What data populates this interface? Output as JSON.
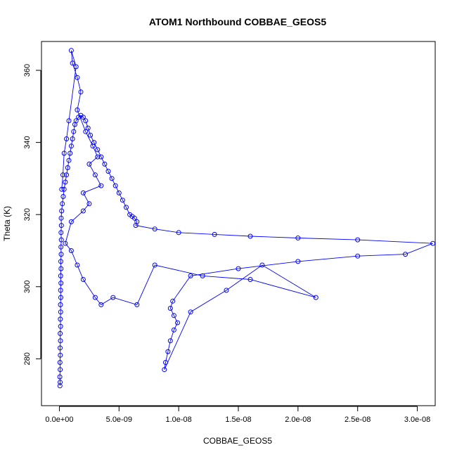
{
  "chart_data": {
    "type": "line",
    "title": "ATOM1 Northbound COBBAE_GEOS5",
    "xlabel": "COBBAE_GEOS5",
    "ylabel": "Theta (K)",
    "xlim": [
      -1.5e-09,
      3.15e-08
    ],
    "ylim": [
      267,
      368
    ],
    "xticks": [
      0,
      5e-09,
      1e-08,
      1.5e-08,
      2e-08,
      2.5e-08,
      3e-08
    ],
    "xtick_labels": [
      "0.0e+00",
      "5.0e-09",
      "1.0e-08",
      "1.5e-08",
      "2.0e-08",
      "2.5e-08",
      "3.0e-08"
    ],
    "yticks": [
      280,
      300,
      320,
      340,
      360
    ],
    "ytick_labels": [
      "280",
      "300",
      "320",
      "340",
      "360"
    ],
    "grid": false,
    "legend": "none",
    "series": [
      {
        "color": "#0000ff",
        "marker": "open-circle",
        "points": [
          [
            5e-11,
            272.5
          ],
          [
            6e-11,
            273.5
          ],
          [
            4e-11,
            275
          ],
          [
            7e-11,
            277
          ],
          [
            5e-11,
            279
          ],
          [
            8e-11,
            281
          ],
          [
            6e-11,
            283
          ],
          [
            9e-11,
            285
          ],
          [
            7e-11,
            287
          ],
          [
            1e-10,
            289
          ],
          [
            8e-11,
            291
          ],
          [
            1.1e-10,
            293
          ],
          [
            9e-11,
            295
          ],
          [
            1.2e-10,
            297
          ],
          [
            1e-10,
            299
          ],
          [
            1.3e-10,
            301
          ],
          [
            1.1e-10,
            303
          ],
          [
            1.4e-10,
            305
          ],
          [
            1.2e-10,
            307
          ],
          [
            1.5e-10,
            309
          ],
          [
            1.3e-10,
            311
          ],
          [
            1.6e-10,
            313
          ],
          [
            1.4e-10,
            315
          ],
          [
            1.7e-10,
            317
          ],
          [
            1.5e-10,
            319
          ],
          [
            1.9e-10,
            321
          ],
          [
            2.5e-10,
            323
          ],
          [
            3.2e-10,
            325
          ],
          [
            4e-10,
            327
          ],
          [
            5e-10,
            329
          ],
          [
            6e-10,
            331
          ],
          [
            7e-10,
            333
          ],
          [
            8e-10,
            335
          ],
          [
            9e-10,
            337
          ],
          [
            1e-09,
            339
          ],
          [
            1.1e-09,
            341
          ],
          [
            1.2e-09,
            343
          ],
          [
            1.3e-09,
            345
          ],
          [
            1.4e-09,
            346
          ],
          [
            1.6e-09,
            347
          ],
          [
            1.8e-09,
            347.5
          ],
          [
            2e-09,
            347
          ],
          [
            2.2e-09,
            346
          ],
          [
            2.4e-09,
            344
          ],
          [
            2.6e-09,
            342
          ],
          [
            2.9e-09,
            340
          ],
          [
            3.2e-09,
            338
          ],
          [
            3.5e-09,
            336
          ],
          [
            3.8e-09,
            334
          ],
          [
            4.1e-09,
            332
          ],
          [
            4.4e-09,
            330
          ],
          [
            4.7e-09,
            328
          ],
          [
            5e-09,
            326
          ],
          [
            5.3e-09,
            324
          ],
          [
            5.6e-09,
            322
          ],
          [
            5.9e-09,
            320
          ],
          [
            6.1e-09,
            319.5
          ],
          [
            6.3e-09,
            319
          ],
          [
            6.5e-09,
            318
          ],
          [
            6.4e-09,
            317
          ],
          [
            8e-09,
            316
          ],
          [
            1e-08,
            315
          ],
          [
            1.3e-08,
            314.5
          ],
          [
            1.6e-08,
            314
          ],
          [
            2e-08,
            313.5
          ],
          [
            2.5e-08,
            313
          ],
          [
            3.13e-08,
            312
          ],
          [
            2.9e-08,
            309
          ],
          [
            2.5e-08,
            308.5
          ],
          [
            2e-08,
            307
          ],
          [
            1.5e-08,
            305
          ],
          [
            1.1e-08,
            303
          ],
          [
            9.5e-09,
            296
          ],
          [
            9.3e-09,
            294
          ],
          [
            9.6e-09,
            292
          ],
          [
            9.9e-09,
            290
          ],
          [
            9.6e-09,
            288
          ],
          [
            9.3e-09,
            285
          ],
          [
            9.1e-09,
            282
          ],
          [
            8.9e-09,
            279
          ],
          [
            8.8e-09,
            277
          ],
          [
            1.1e-08,
            293
          ],
          [
            1.4e-08,
            299
          ],
          [
            1.7e-08,
            306
          ],
          [
            2.15e-08,
            297
          ],
          [
            1.6e-08,
            302
          ],
          [
            1.2e-08,
            303
          ],
          [
            8e-09,
            306
          ],
          [
            6.5e-09,
            295
          ],
          [
            4.5e-09,
            297
          ],
          [
            3.5e-09,
            295
          ],
          [
            3e-09,
            297
          ],
          [
            2e-09,
            302
          ],
          [
            1.5e-09,
            306
          ],
          [
            1e-09,
            310
          ],
          [
            5e-10,
            312
          ],
          [
            1e-09,
            318
          ],
          [
            2e-09,
            321
          ],
          [
            2.5e-09,
            323
          ],
          [
            2e-09,
            326
          ],
          [
            3.5e-09,
            328
          ],
          [
            3e-09,
            331
          ],
          [
            2.5e-09,
            334
          ],
          [
            3.2e-09,
            336
          ],
          [
            2.8e-09,
            339
          ],
          [
            2.2e-09,
            343
          ],
          [
            1.5e-09,
            349
          ],
          [
            1.8e-09,
            354
          ],
          [
            1.5e-09,
            358
          ],
          [
            1.1e-09,
            362
          ],
          [
            1e-09,
            365.5
          ],
          [
            1.4e-09,
            361
          ],
          [
            8e-10,
            346
          ],
          [
            6e-10,
            341
          ],
          [
            4e-10,
            337
          ],
          [
            3e-10,
            331
          ],
          [
            2e-10,
            327
          ]
        ]
      }
    ]
  }
}
